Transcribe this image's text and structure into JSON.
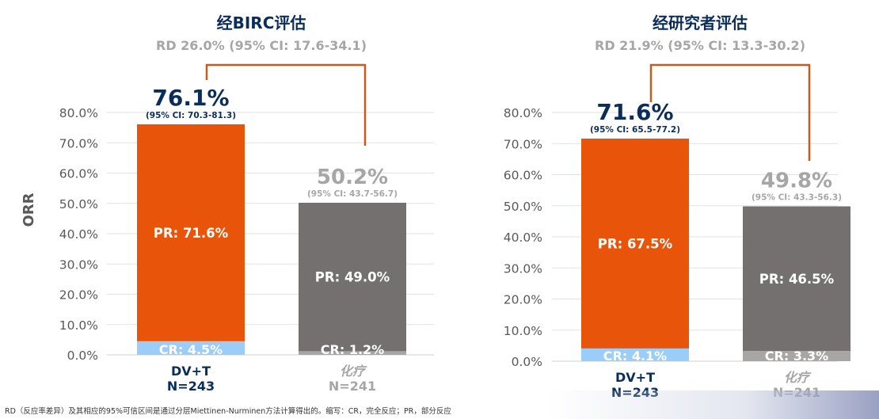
{
  "colors": {
    "pr_bar_1": "#E8540A",
    "cr_bar_1": "#9ACDF8",
    "pr_bar_2": "#757070",
    "cr_bar_2": "#A8A5A5",
    "bracket": "#C85A1E",
    "title": "#0B2D5A",
    "muted": "#A6A6A6",
    "axis_text": "#595959",
    "grid": "#E2E2E2"
  },
  "chart_data": [
    {
      "type": "bar",
      "stacked": true,
      "title": "经BIRC评估",
      "subtitle": "RD 26.0% (95% CI: 17.6-34.1)",
      "ylabel": "ORR",
      "ylim": [
        0,
        80
      ],
      "yticks": [
        "0.0%",
        "10.0%",
        "20.0%",
        "30.0%",
        "40.0%",
        "50.0%",
        "60.0%",
        "70.0%",
        "80.0%"
      ],
      "grid": true,
      "categories": [
        {
          "name": "DV+T",
          "n": "N=243"
        },
        {
          "name": "化疗",
          "n": "N=241"
        }
      ],
      "series": [
        {
          "name": "CR",
          "values": [
            4.5,
            1.2
          ],
          "labels": [
            "CR: 4.5%",
            "CR: 1.2%"
          ]
        },
        {
          "name": "PR",
          "values": [
            71.6,
            49.0
          ],
          "labels": [
            "PR: 71.6%",
            "PR: 49.0%"
          ]
        }
      ],
      "totals": [
        76.1,
        50.2
      ],
      "total_labels": [
        "76.1%",
        "50.2%"
      ],
      "ci_labels": [
        "(95% CI: 70.3-81.3)",
        "(95% CI: 43.7-56.7)"
      ]
    },
    {
      "type": "bar",
      "stacked": true,
      "title": "经研究者评估",
      "subtitle": "RD 21.9% (95% CI: 13.3-30.2)",
      "ylabel": "",
      "ylim": [
        0,
        80
      ],
      "yticks": [
        "0.0%",
        "10.0%",
        "20.0%",
        "30.0%",
        "40.0%",
        "50.0%",
        "60.0%",
        "70.0%",
        "80.0%"
      ],
      "grid": true,
      "categories": [
        {
          "name": "DV+T",
          "n": "N=243"
        },
        {
          "name": "化疗",
          "n": "N=241"
        }
      ],
      "series": [
        {
          "name": "CR",
          "values": [
            4.1,
            3.3
          ],
          "labels": [
            "CR: 4.1%",
            "CR: 3.3%"
          ]
        },
        {
          "name": "PR",
          "values": [
            67.5,
            46.5
          ],
          "labels": [
            "PR: 67.5%",
            "PR: 46.5%"
          ]
        }
      ],
      "totals": [
        71.6,
        49.8
      ],
      "total_labels": [
        "71.6%",
        "49.8%"
      ],
      "ci_labels": [
        "(95% CI: 65.5-77.2)",
        "(95% CI: 43.3-56.3)"
      ]
    }
  ],
  "footnote": "RD（反应率差异）及其相应的95%可信区间是通过分层Miettinen-Nurminen方法计算得出的。缩写：CR，完全反应；PR，部分反应"
}
